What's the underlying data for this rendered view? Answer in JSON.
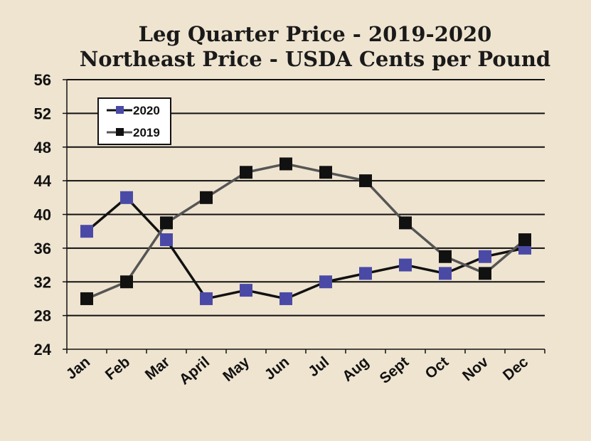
{
  "chart_data": {
    "type": "line",
    "title": "Leg Quarter Price - 2019-2020",
    "subtitle": "Northeast Price - USDA Cents per Pound",
    "categories": [
      "Jan",
      "Feb",
      "Mar",
      "April",
      "May",
      "Jun",
      "Jul",
      "Aug",
      "Sept",
      "Oct",
      "Nov",
      "Dec"
    ],
    "series": [
      {
        "name": "2020",
        "marker_color": "#4a4aa6",
        "line_color": "#111111",
        "values": [
          38,
          42,
          37,
          30,
          31,
          30,
          32,
          33,
          34,
          33,
          35,
          36
        ]
      },
      {
        "name": "2019",
        "marker_color": "#111111",
        "line_color": "#555555",
        "values": [
          30,
          32,
          39,
          42,
          45,
          46,
          45,
          44,
          39,
          35,
          33,
          37
        ]
      }
    ],
    "ylim": [
      24,
      56
    ],
    "yticks": [
      24,
      28,
      32,
      36,
      40,
      44,
      48,
      52,
      56
    ],
    "grid": true,
    "legend_position": "top-left",
    "background": "#efe4d0"
  }
}
